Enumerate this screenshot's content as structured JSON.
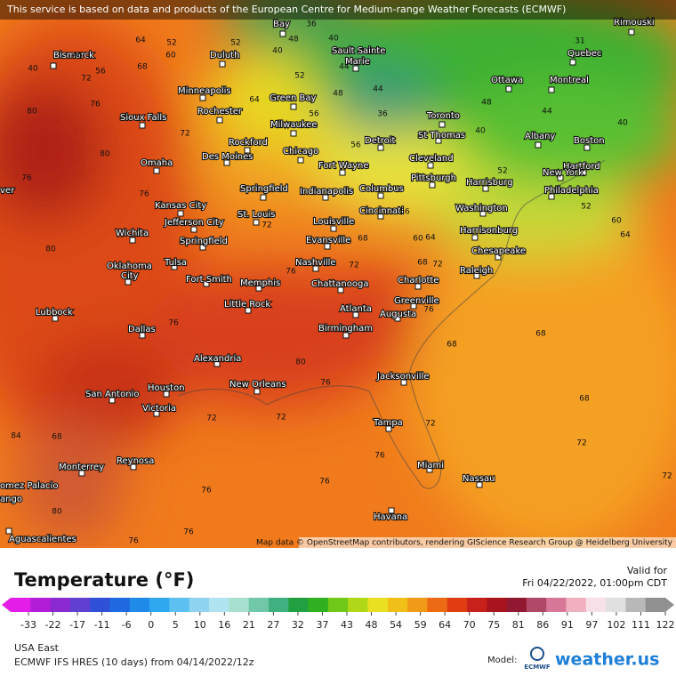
{
  "header": {
    "notice": "This service is based on data and products of the European Centre for Medium-range Weather Forecasts (ECMWF)"
  },
  "map": {
    "cities": [
      "Bay",
      "Sault Sainte",
      "Marie",
      "Rimouski",
      "Quebec",
      "Bismarck",
      "Duluth",
      "Ottawa",
      "Montreal",
      "Minneapolis",
      "Green Bay",
      "Rochester",
      "Toronto",
      "Sioux Falls",
      "Milwaukee",
      "Albany",
      "Boston",
      "St Thomas",
      "Rockford",
      "Detroit",
      "Chicago",
      "Des Moines",
      "Omaha",
      "Cleveland",
      "Fort Wayne",
      "Hartford",
      "New York",
      "Springfield",
      "Indianapolis",
      "Pittsburgh",
      "Harrisburg",
      "Columbus",
      "Philadelphia",
      "Kansas City",
      "Jefferson City",
      "St. Louis",
      "Cincinnati",
      "Washington",
      "Louisville",
      "Harrisonburg",
      "Wichita",
      "Springfield",
      "Evansville",
      "Chesapeake",
      "Oklahoma",
      "City",
      "Tulsa",
      "Nashville",
      "Raleigh",
      "Fort Smith",
      "Memphis",
      "Chattanooga",
      "Charlotte",
      "Greenville",
      "Little Rock",
      "Lubbock",
      "Atlanta",
      "Augusta",
      "Birmingham",
      "Dallas",
      "Alexandria",
      "Jacksonville",
      "New Orleans",
      "Houston",
      "San Antonio",
      "Victoria",
      "Tampa",
      "Reynosa",
      "Monterrey",
      "Miami",
      "Nassau",
      "omez Palacio",
      "ango",
      "ver",
      "Aguascalientes",
      "Havana"
    ],
    "contour_labels": [
      64,
      52,
      60,
      52,
      40,
      48,
      36,
      40,
      44,
      52,
      40,
      48,
      56,
      72,
      68,
      76,
      80,
      76,
      80,
      72,
      64,
      56,
      56,
      48,
      44,
      36,
      40,
      48,
      44,
      40,
      31,
      52,
      56,
      60,
      64,
      68,
      72,
      76,
      80,
      76,
      72,
      68,
      72,
      76,
      68,
      68,
      68,
      72,
      72,
      52,
      60,
      64,
      80,
      76,
      72,
      72,
      76,
      76,
      76,
      72,
      76,
      76,
      76,
      68,
      80,
      84
    ],
    "attribution": "Map data © OpenStreetMap contributors, rendering GIScience Research Group @ Heidelberg University"
  },
  "legend": {
    "title": "Temperature (°F)",
    "valid_label": "Valid for",
    "valid_time": "Fri 04/22/2022, 01:00pm CDT",
    "ticks": [
      -33,
      -22,
      -17,
      -11,
      -6,
      0,
      5,
      10,
      16,
      21,
      27,
      32,
      37,
      43,
      48,
      54,
      59,
      64,
      70,
      75,
      81,
      86,
      91,
      97,
      102,
      111,
      122
    ]
  },
  "footer": {
    "region": "USA East",
    "model_run": "ECMWF IFS HRES (10 days) from 04/14/2022/12z",
    "model_label": "Model:",
    "ecmwf": "ECMWF",
    "brand": "weather.us"
  }
}
